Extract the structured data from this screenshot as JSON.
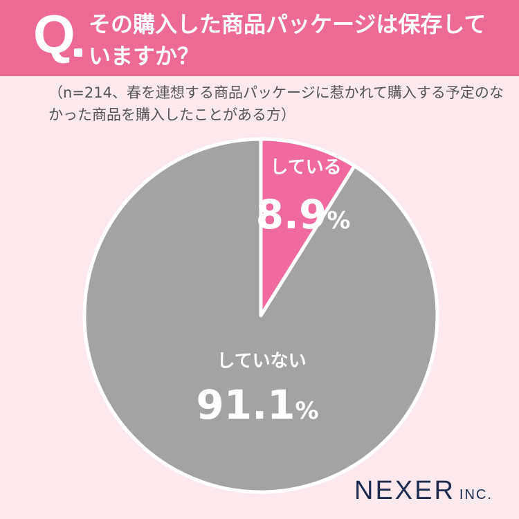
{
  "header": {
    "q_letter": "Q",
    "question": "その購入した商品パッケージは保存していますか？"
  },
  "note": "（n=214、春を連想する商品パッケージに惹かれて購入する予定のなかった商品を購入したことがある方）",
  "colors": {
    "header": "#ec6a94",
    "slice_yes": "#f06aa0",
    "slice_no": "#a3a3a3",
    "background": "#fbe9ee"
  },
  "chart_data": {
    "type": "pie",
    "slices": [
      {
        "label": "している",
        "value": 8.9,
        "display": "8.9",
        "unit": "%",
        "color": "#f06aa0"
      },
      {
        "label": "していない",
        "value": 91.1,
        "display": "91.1",
        "unit": "%",
        "color": "#a3a3a3"
      }
    ],
    "start": "12 o'clock",
    "direction": "clockwise"
  },
  "logo": {
    "main": "NEXER",
    "suffix": "INC."
  }
}
